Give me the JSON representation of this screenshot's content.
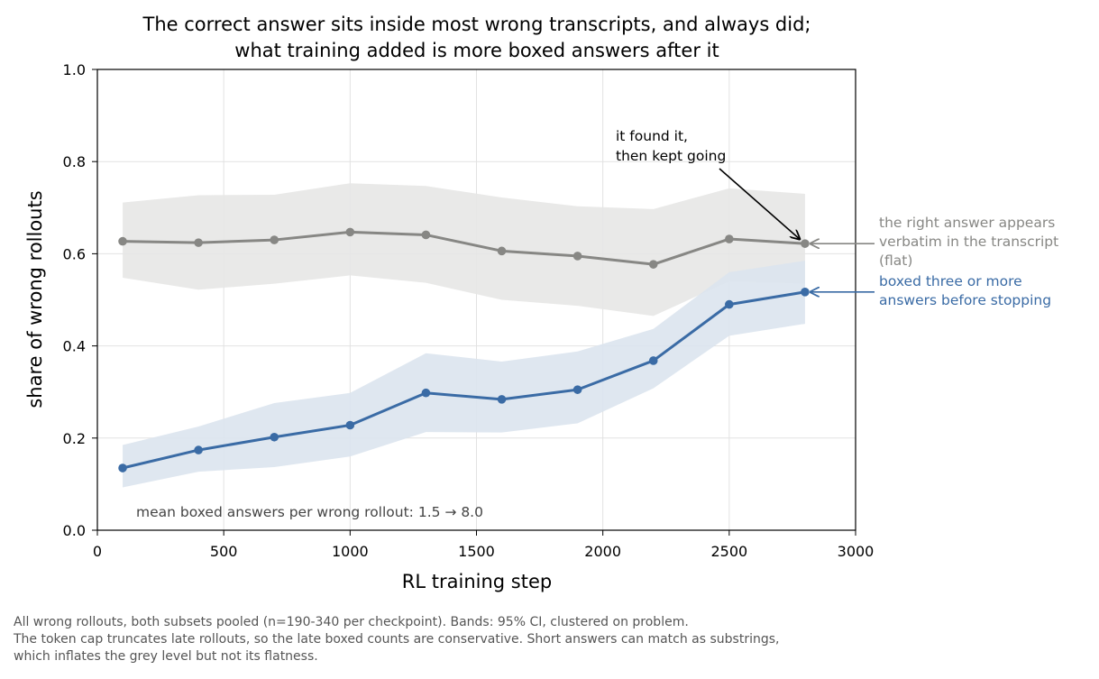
{
  "chart_data": {
    "type": "line",
    "title": [
      "The correct answer sits inside most wrong transcripts, and always did;",
      "what training added is more boxed answers after it"
    ],
    "xlabel": "RL training step",
    "ylabel": "share of wrong rollouts",
    "xlim": [
      0,
      3000
    ],
    "ylim": [
      0.0,
      1.0
    ],
    "xticks": [
      0,
      500,
      1000,
      1500,
      2000,
      2500,
      3000
    ],
    "xtick_labels": [
      "0",
      "500",
      "1000",
      "1500",
      "2000",
      "2500",
      "3000"
    ],
    "yticks": [
      0.0,
      0.2,
      0.4,
      0.6,
      0.8,
      1.0
    ],
    "ytick_labels": [
      "0.0",
      "0.2",
      "0.4",
      "0.6",
      "0.8",
      "1.0"
    ],
    "grid": true,
    "x": [
      100,
      400,
      700,
      1000,
      1300,
      1600,
      1900,
      2200,
      2500,
      2800
    ],
    "series": [
      {
        "label_lines": [
          "the right answer appears",
          "verbatim in the transcript",
          "(flat)"
        ],
        "color": "#878784",
        "band_color": "#e7e7e5",
        "values": [
          0.627,
          0.624,
          0.63,
          0.647,
          0.641,
          0.606,
          0.595,
          0.577,
          0.632,
          0.622
        ],
        "ci_low": [
          0.548,
          0.522,
          0.535,
          0.553,
          0.537,
          0.5,
          0.487,
          0.465,
          0.54,
          0.535
        ],
        "ci_high": [
          0.711,
          0.727,
          0.728,
          0.753,
          0.747,
          0.722,
          0.703,
          0.697,
          0.742,
          0.73
        ]
      },
      {
        "label_lines": [
          "boxed three or more",
          "answers before stopping"
        ],
        "color": "#3a6ba5",
        "band_color": "#dbe4ee",
        "values": [
          0.135,
          0.174,
          0.202,
          0.228,
          0.298,
          0.284,
          0.305,
          0.368,
          0.49,
          0.517
        ],
        "ci_low": [
          0.093,
          0.127,
          0.137,
          0.16,
          0.213,
          0.212,
          0.232,
          0.308,
          0.422,
          0.448
        ],
        "ci_high": [
          0.185,
          0.225,
          0.276,
          0.298,
          0.384,
          0.366,
          0.388,
          0.437,
          0.56,
          0.585
        ]
      }
    ],
    "annotations": [
      {
        "text_lines": [
          "it found it,",
          "then kept going"
        ],
        "x": 2800,
        "y": 0.622
      }
    ],
    "note": "mean boxed answers per wrong rollout: 1.5 → 8.0"
  },
  "caption_lines": [
    "All wrong rollouts, both subsets pooled (n=190-340 per checkpoint). Bands: 95% CI, clustered on problem.",
    "The token cap truncates late rollouts, so the late boxed counts are conservative. Short answers can match as substrings,",
    "which inflates the grey level but not its flatness."
  ]
}
